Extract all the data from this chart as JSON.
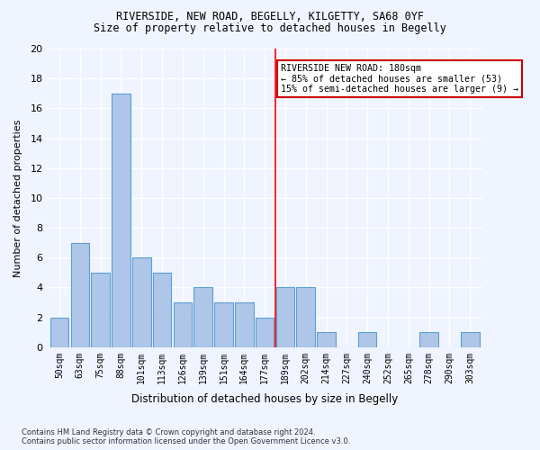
{
  "title1": "RIVERSIDE, NEW ROAD, BEGELLY, KILGETTY, SA68 0YF",
  "title2": "Size of property relative to detached houses in Begelly",
  "xlabel": "Distribution of detached houses by size in Begelly",
  "ylabel": "Number of detached properties",
  "footnote": "Contains HM Land Registry data © Crown copyright and database right 2024.\nContains public sector information licensed under the Open Government Licence v3.0.",
  "bar_labels": [
    "50sqm",
    "63sqm",
    "75sqm",
    "88sqm",
    "101sqm",
    "113sqm",
    "126sqm",
    "139sqm",
    "151sqm",
    "164sqm",
    "177sqm",
    "189sqm",
    "202sqm",
    "214sqm",
    "227sqm",
    "240sqm",
    "252sqm",
    "265sqm",
    "278sqm",
    "290sqm",
    "303sqm"
  ],
  "bar_values": [
    2,
    7,
    5,
    17,
    6,
    5,
    3,
    4,
    3,
    3,
    2,
    4,
    4,
    1,
    0,
    1,
    0,
    0,
    1,
    0,
    1
  ],
  "bar_color": "#aec6e8",
  "bar_edgecolor": "#5a9fd4",
  "ylim": [
    0,
    20
  ],
  "yticks": [
    0,
    2,
    4,
    6,
    8,
    10,
    12,
    14,
    16,
    18,
    20
  ],
  "red_line_index": 10.5,
  "annotation_text": "RIVERSIDE NEW ROAD: 180sqm\n← 85% of detached houses are smaller (53)\n15% of semi-detached houses are larger (9) →",
  "annotation_box_color": "#ffffff",
  "annotation_box_edgecolor": "#cc0000",
  "bg_color": "#f0f4ff",
  "grid_color": "#ffffff"
}
